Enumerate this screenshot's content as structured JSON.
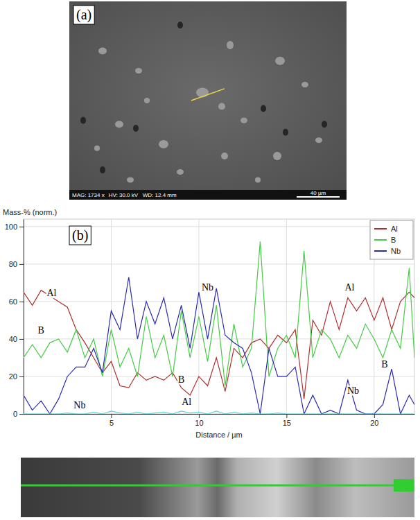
{
  "panel_a": {
    "label": "(a)",
    "info": [
      "MAG: 1734 x",
      "HV: 30.0 kV",
      "WD: 12.4 mm"
    ],
    "scale_bar": "40 µm"
  },
  "chart_data": {
    "type": "line",
    "panel_label": "(b)",
    "y_label": "Mass-% (norm.)",
    "x_label": "Distance / µm",
    "xlim": [
      0,
      22.3
    ],
    "xticks": [
      5,
      10,
      15,
      20
    ],
    "ylim": [
      0,
      104
    ],
    "yticks": [
      0,
      20,
      40,
      60,
      80,
      100
    ],
    "grid": true,
    "legend": "top-right",
    "x": [
      0,
      0.5,
      1,
      1.5,
      2,
      2.5,
      3,
      3.5,
      4,
      4.5,
      5,
      5.5,
      6,
      6.5,
      7,
      7.5,
      8,
      8.5,
      9,
      9.5,
      10,
      10.5,
      11,
      11.5,
      12,
      12.5,
      13,
      13.5,
      14,
      14.5,
      15,
      15.5,
      16,
      16.5,
      17,
      17.5,
      18,
      18.5,
      19,
      19.5,
      20,
      20.5,
      21,
      21.5,
      22,
      22.3
    ],
    "series": [
      {
        "name": "Al",
        "color": "#b03030",
        "values": [
          65,
          58,
          66,
          63,
          60,
          57,
          45,
          38,
          30,
          22,
          28,
          15,
          14,
          22,
          18,
          20,
          18,
          22,
          14,
          10,
          20,
          15,
          30,
          12,
          35,
          30,
          38,
          40,
          35,
          42,
          38,
          45,
          8,
          50,
          42,
          60,
          45,
          62,
          55,
          62,
          50,
          62,
          45,
          60,
          65,
          62
        ]
      },
      {
        "name": "B",
        "color": "#44cc44",
        "values": [
          30,
          37,
          30,
          38,
          40,
          33,
          45,
          30,
          40,
          20,
          45,
          25,
          35,
          20,
          52,
          30,
          42,
          20,
          55,
          30,
          52,
          28,
          58,
          15,
          48,
          25,
          35,
          92,
          20,
          35,
          42,
          30,
          87,
          30,
          45,
          40,
          30,
          42,
          35,
          48,
          40,
          30,
          45,
          35,
          78,
          30
        ]
      },
      {
        "name": "Nb",
        "color": "#2a2ab0",
        "values": [
          10,
          2,
          7,
          0,
          8,
          20,
          25,
          25,
          35,
          22,
          55,
          45,
          73,
          40,
          60,
          48,
          62,
          40,
          58,
          35,
          65,
          40,
          67,
          42,
          38,
          35,
          22,
          0,
          35,
          20,
          20,
          25,
          0,
          10,
          0,
          2,
          0,
          18,
          2,
          0,
          0,
          5,
          24,
          0,
          10,
          5
        ]
      },
      {
        "color": "#5fd3e0",
        "values": [
          0,
          0,
          0,
          0,
          0,
          0.5,
          0,
          0,
          1,
          0,
          1.5,
          0.5,
          0,
          1,
          0,
          0.5,
          1,
          0,
          1.5,
          0.5,
          1,
          0,
          1.5,
          0,
          1,
          0,
          0.5,
          0,
          0,
          0.5,
          0,
          0,
          0,
          0,
          0,
          0,
          0,
          0,
          0,
          0,
          0,
          0,
          0,
          0,
          0,
          0
        ]
      }
    ],
    "annotations": [
      {
        "text": "Al",
        "x": 1.6,
        "y": 64
      },
      {
        "text": "B",
        "x": 1.0,
        "y": 44
      },
      {
        "text": "Nb",
        "x": 3.2,
        "y": 4
      },
      {
        "text": "Nb",
        "x": 10.5,
        "y": 67
      },
      {
        "text": "B",
        "x": 9.0,
        "y": 18
      },
      {
        "text": "Al",
        "x": 9.3,
        "y": 6
      },
      {
        "text": "Al",
        "x": 18.6,
        "y": 67
      },
      {
        "text": "B",
        "x": 20.6,
        "y": 26
      },
      {
        "text": "Nb",
        "x": 18.8,
        "y": 12
      }
    ]
  }
}
